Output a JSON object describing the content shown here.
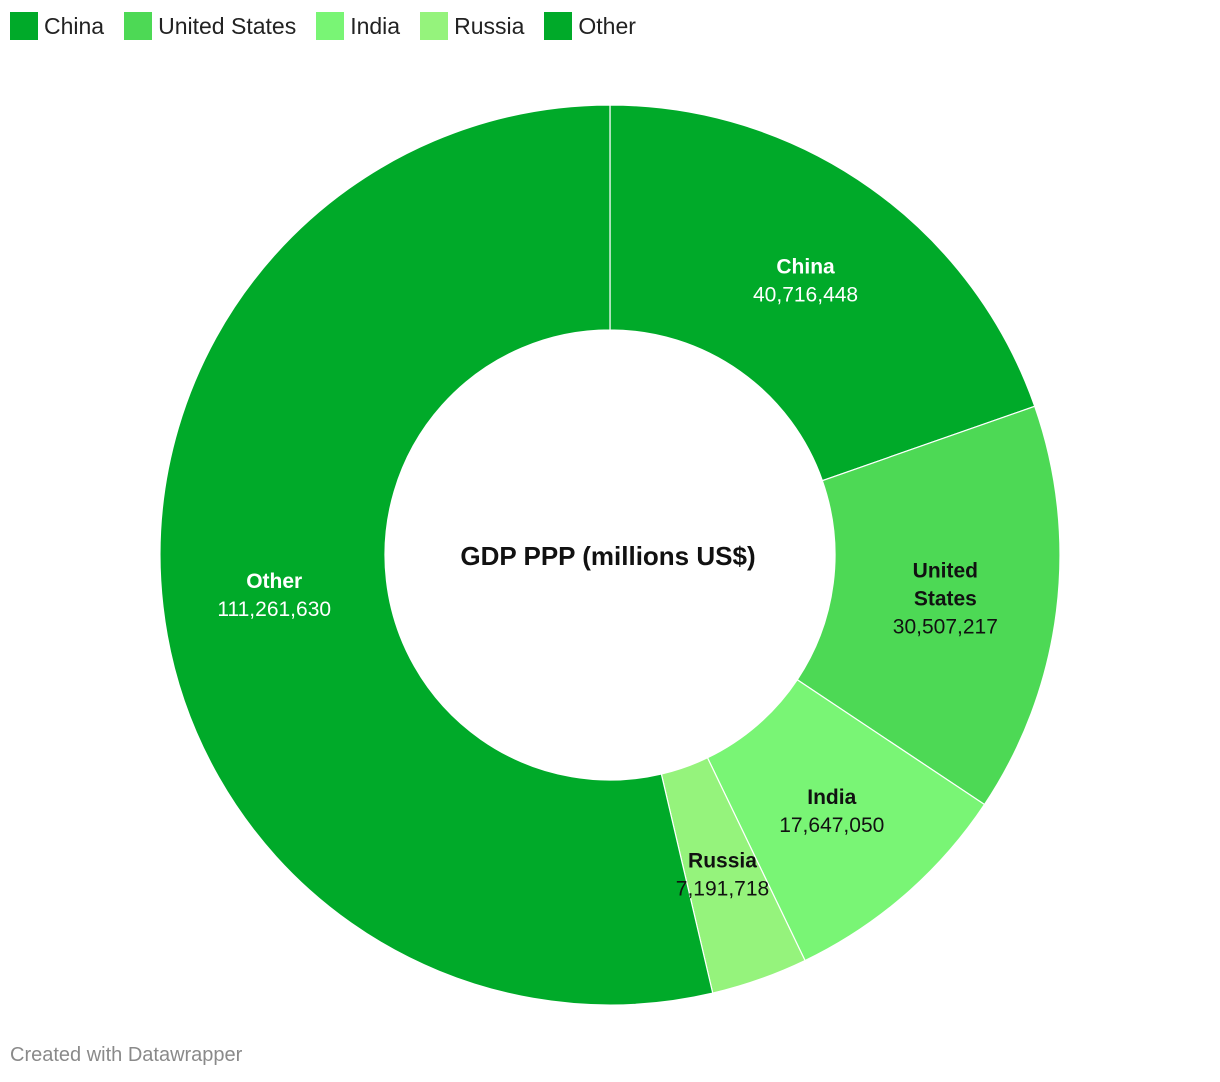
{
  "chart_data": {
    "type": "pie",
    "donut": true,
    "center_label": "GDP PPP (millions US$)",
    "slices": [
      {
        "label": "China",
        "value": 40716448,
        "value_label": "40,716,448",
        "color": "#00aa29",
        "text_color": "#ffffff"
      },
      {
        "label": "United States",
        "value": 30507217,
        "value_label": "30,507,217",
        "color": "#4dd955",
        "text_color": "#111111"
      },
      {
        "label": "India",
        "value": 17647050,
        "value_label": "17,647,050",
        "color": "#79f575",
        "text_color": "#111111"
      },
      {
        "label": "Russia",
        "value": 7191718,
        "value_label": "7,191,718",
        "color": "#95f37c",
        "text_color": "#111111"
      },
      {
        "label": "Other",
        "value": 111261630,
        "value_label": "111,261,630",
        "color": "#00aa29",
        "text_color": "#ffffff"
      }
    ]
  },
  "footer": {
    "credit": "Created with Datawrapper"
  }
}
